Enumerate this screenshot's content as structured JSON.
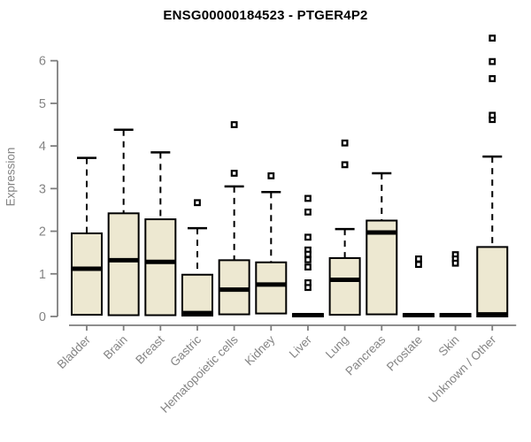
{
  "chart_data": {
    "type": "boxplot",
    "title": "ENSG00000184523 - PTGER4P2",
    "ylabel": "Expression",
    "xlabel": "",
    "yticks": [
      0,
      1,
      2,
      3,
      4,
      5,
      6
    ],
    "ylim": [
      0,
      6.7
    ],
    "grid": false,
    "legend": null,
    "colors": {
      "box_fill": "#EDE8D1",
      "box_border": "#000000",
      "median": "#000000",
      "whisker": "#000000",
      "outlier_stroke": "#000000",
      "axis": "#7E7E7E",
      "tick_label": "#848484",
      "title": "#000000",
      "background": "#FFFFFF"
    },
    "categories": [
      "Bladder",
      "Brain",
      "Breast",
      "Gastric",
      "Hematopoietic cells",
      "Kidney",
      "Liver",
      "Lung",
      "Pancreas",
      "Prostate",
      "Skin",
      "Unknown / Other"
    ],
    "boxes": [
      {
        "category": "Bladder",
        "whisker_low": 0.04,
        "q1": 0.04,
        "median": 1.12,
        "q3": 1.95,
        "whisker_high": 3.72,
        "outliers": []
      },
      {
        "category": "Brain",
        "whisker_low": 0.03,
        "q1": 0.03,
        "median": 1.32,
        "q3": 2.42,
        "whisker_high": 4.38,
        "outliers": []
      },
      {
        "category": "Breast",
        "whisker_low": 0.03,
        "q1": 0.03,
        "median": 1.28,
        "q3": 2.28,
        "whisker_high": 3.85,
        "outliers": []
      },
      {
        "category": "Gastric",
        "whisker_low": 0.02,
        "q1": 0.02,
        "median": 0.08,
        "q3": 0.98,
        "whisker_high": 2.07,
        "outliers": [
          2.67
        ]
      },
      {
        "category": "Hematopoietic cells",
        "whisker_low": 0.05,
        "q1": 0.05,
        "median": 0.63,
        "q3": 1.32,
        "whisker_high": 3.05,
        "outliers": [
          4.5,
          3.36
        ]
      },
      {
        "category": "Kidney",
        "whisker_low": 0.07,
        "q1": 0.07,
        "median": 0.75,
        "q3": 1.27,
        "whisker_high": 2.92,
        "outliers": [
          3.3
        ]
      },
      {
        "category": "Liver",
        "whisker_low": 0.0,
        "q1": 0.0,
        "median": 0.03,
        "q3": 0.06,
        "whisker_high": 0.06,
        "outliers": [
          2.77,
          2.45,
          1.86,
          1.56,
          1.46,
          1.33,
          1.16,
          0.79,
          0.68
        ]
      },
      {
        "category": "Lung",
        "whisker_low": 0.04,
        "q1": 0.04,
        "median": 0.86,
        "q3": 1.37,
        "whisker_high": 2.05,
        "outliers": [
          4.07,
          3.56
        ]
      },
      {
        "category": "Pancreas",
        "whisker_low": 0.05,
        "q1": 0.05,
        "median": 1.97,
        "q3": 2.25,
        "whisker_high": 3.36,
        "outliers": []
      },
      {
        "category": "Prostate",
        "whisker_low": 0.0,
        "q1": 0.0,
        "median": 0.03,
        "q3": 0.06,
        "whisker_high": 0.06,
        "outliers": [
          1.35,
          1.22
        ]
      },
      {
        "category": "Skin",
        "whisker_low": 0.0,
        "q1": 0.0,
        "median": 0.03,
        "q3": 0.06,
        "whisker_high": 0.06,
        "outliers": [
          1.45,
          1.35,
          1.25
        ]
      },
      {
        "category": "Unknown / Other",
        "whisker_low": 0.0,
        "q1": 0.0,
        "median": 0.05,
        "q3": 1.63,
        "whisker_high": 3.75,
        "outliers": [
          4.62,
          4.72,
          5.58,
          5.98,
          6.53
        ]
      }
    ]
  }
}
